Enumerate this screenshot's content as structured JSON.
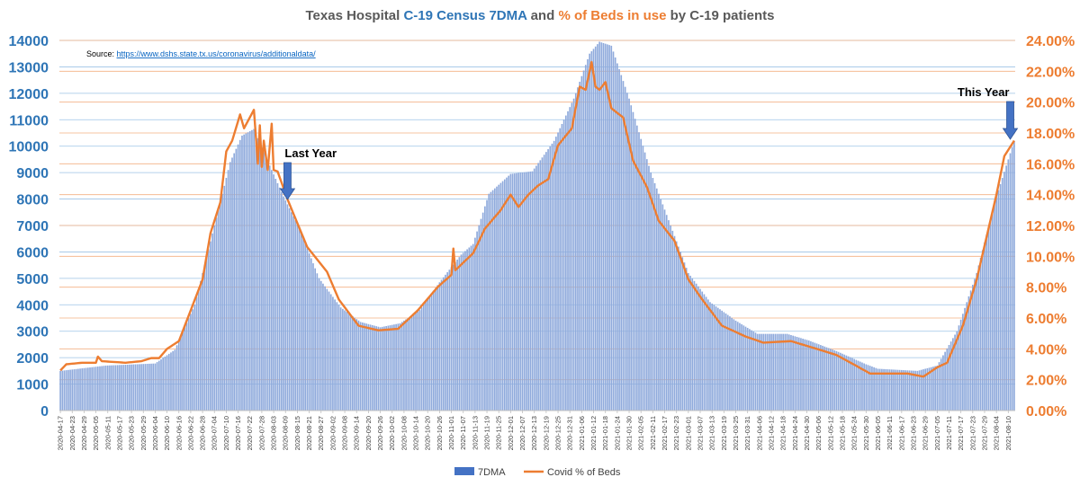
{
  "chart_data": {
    "type": "bar+line",
    "title_parts": [
      {
        "text": "Texas Hospital ",
        "style": "plain"
      },
      {
        "text": "C-19 Census 7DMA",
        "style": "blue"
      },
      {
        "text": " and ",
        "style": "plain"
      },
      {
        "text": "% of Beds in use",
        "style": "orange"
      },
      {
        "text": " by C-19 patients",
        "style": "plain"
      }
    ],
    "source_label": "Source:",
    "source_url": "https://www.dshs.state.tx.us/coronavirus/additionaldata/",
    "x_start": "2020-04-17",
    "x_end": "2021-08-13",
    "x_tick_labels": [
      "2020-04-17",
      "2020-04-23",
      "2020-04-29",
      "2020-05-05",
      "2020-05-11",
      "2020-05-17",
      "2020-05-23",
      "2020-05-29",
      "2020-06-04",
      "2020-06-10",
      "2020-06-16",
      "2020-06-22",
      "2020-06-28",
      "2020-07-04",
      "2020-07-10",
      "2020-07-16",
      "2020-07-22",
      "2020-07-28",
      "2020-08-03",
      "2020-08-09",
      "2020-08-15",
      "2020-08-21",
      "2020-08-27",
      "2020-09-02",
      "2020-09-08",
      "2020-09-14",
      "2020-09-20",
      "2020-09-26",
      "2020-10-02",
      "2020-10-08",
      "2020-10-14",
      "2020-10-20",
      "2020-10-26",
      "2020-11-01",
      "2020-11-07",
      "2020-11-13",
      "2020-11-19",
      "2020-11-25",
      "2020-12-01",
      "2020-12-07",
      "2020-12-13",
      "2020-12-19",
      "2020-12-25",
      "2020-12-31",
      "2021-01-06",
      "2021-01-12",
      "2021-01-18",
      "2021-01-24",
      "2021-01-30",
      "2021-02-05",
      "2021-02-11",
      "2021-02-17",
      "2021-02-23",
      "2021-03-01",
      "2021-03-07",
      "2021-03-13",
      "2021-03-19",
      "2021-03-25",
      "2021-03-31",
      "2021-04-06",
      "2021-04-12",
      "2021-04-18",
      "2021-04-24",
      "2021-04-30",
      "2021-05-06",
      "2021-05-12",
      "2021-05-18",
      "2021-05-24",
      "2021-05-30",
      "2021-06-05",
      "2021-06-11",
      "2021-06-17",
      "2021-06-23",
      "2021-06-29",
      "2021-07-05",
      "2021-07-11",
      "2021-07-17",
      "2021-07-23",
      "2021-07-29",
      "2021-08-04",
      "2021-08-10"
    ],
    "y_left": {
      "min": 0,
      "max": 14000,
      "ticks": [
        "0",
        "1000",
        "2000",
        "3000",
        "4000",
        "5000",
        "6000",
        "7000",
        "8000",
        "9000",
        "10000",
        "11000",
        "12000",
        "13000",
        "14000"
      ]
    },
    "y_right": {
      "min": 0,
      "max": 24,
      "ticks": [
        "0.00%",
        "2.00%",
        "4.00%",
        "6.00%",
        "8.00%",
        "10.00%",
        "12.00%",
        "14.00%",
        "16.00%",
        "18.00%",
        "20.00%",
        "22.00%",
        "24.00%"
      ]
    },
    "series": [
      {
        "name": "7DMA",
        "type": "bar",
        "color": "#4472c4",
        "axis": "left",
        "keypoints": [
          [
            "2020-04-17",
            1500
          ],
          [
            "2020-05-10",
            1700
          ],
          [
            "2020-06-04",
            1780
          ],
          [
            "2020-06-14",
            2300
          ],
          [
            "2020-06-24",
            4000
          ],
          [
            "2020-07-04",
            7000
          ],
          [
            "2020-07-12",
            9400
          ],
          [
            "2020-07-18",
            10400
          ],
          [
            "2020-07-24",
            10650
          ],
          [
            "2020-07-30",
            9600
          ],
          [
            "2020-08-08",
            8100
          ],
          [
            "2020-08-16",
            6900
          ],
          [
            "2020-08-26",
            5000
          ],
          [
            "2020-09-06",
            3900
          ],
          [
            "2020-09-16",
            3350
          ],
          [
            "2020-09-26",
            3150
          ],
          [
            "2020-10-06",
            3300
          ],
          [
            "2020-10-16",
            3800
          ],
          [
            "2020-10-26",
            4850
          ],
          [
            "2020-11-06",
            5900
          ],
          [
            "2020-11-12",
            6300
          ],
          [
            "2020-11-20",
            8200
          ],
          [
            "2020-12-01",
            8950
          ],
          [
            "2020-12-12",
            9050
          ],
          [
            "2020-12-23",
            10200
          ],
          [
            "2021-01-02",
            11800
          ],
          [
            "2021-01-10",
            13500
          ],
          [
            "2021-01-15",
            13950
          ],
          [
            "2021-01-21",
            13800
          ],
          [
            "2021-01-30",
            11800
          ],
          [
            "2021-02-10",
            9000
          ],
          [
            "2021-02-20",
            7000
          ],
          [
            "2021-03-01",
            5200
          ],
          [
            "2021-03-12",
            4100
          ],
          [
            "2021-03-25",
            3400
          ],
          [
            "2021-04-05",
            2900
          ],
          [
            "2021-04-20",
            2900
          ],
          [
            "2021-05-01",
            2650
          ],
          [
            "2021-05-15",
            2250
          ],
          [
            "2021-05-30",
            1750
          ],
          [
            "2021-06-05",
            1580
          ],
          [
            "2021-06-25",
            1500
          ],
          [
            "2021-07-05",
            1700
          ],
          [
            "2021-07-15",
            3000
          ],
          [
            "2021-07-25",
            5200
          ],
          [
            "2021-08-04",
            8100
          ],
          [
            "2021-08-13",
            10200
          ]
        ]
      },
      {
        "name": "Covid % of Beds",
        "type": "line",
        "color": "#ed7d31",
        "axis": "right",
        "keypoints": [
          [
            "2020-04-17",
            2.6
          ],
          [
            "2020-04-20",
            3.0
          ],
          [
            "2020-04-28",
            3.1
          ],
          [
            "2020-05-05",
            3.1
          ],
          [
            "2020-05-06",
            3.5
          ],
          [
            "2020-05-08",
            3.2
          ],
          [
            "2020-05-20",
            3.1
          ],
          [
            "2020-05-28",
            3.2
          ],
          [
            "2020-06-02",
            3.4
          ],
          [
            "2020-06-06",
            3.4
          ],
          [
            "2020-06-10",
            4.0
          ],
          [
            "2020-06-16",
            4.5
          ],
          [
            "2020-06-22",
            6.5
          ],
          [
            "2020-06-28",
            8.5
          ],
          [
            "2020-07-02",
            11.5
          ],
          [
            "2020-07-07",
            13.5
          ],
          [
            "2020-07-10",
            16.8
          ],
          [
            "2020-07-13",
            17.5
          ],
          [
            "2020-07-17",
            19.2
          ],
          [
            "2020-07-19",
            18.3
          ],
          [
            "2020-07-24",
            19.5
          ],
          [
            "2020-07-26",
            16.0
          ],
          [
            "2020-07-27",
            18.5
          ],
          [
            "2020-07-28",
            15.8
          ],
          [
            "2020-07-29",
            17.5
          ],
          [
            "2020-07-31",
            15.6
          ],
          [
            "2020-08-02",
            18.6
          ],
          [
            "2020-08-03",
            15.6
          ],
          [
            "2020-08-05",
            15.5
          ],
          [
            "2020-08-10",
            13.7
          ],
          [
            "2020-08-20",
            10.6
          ],
          [
            "2020-08-30",
            9.0
          ],
          [
            "2020-09-05",
            7.2
          ],
          [
            "2020-09-15",
            5.5
          ],
          [
            "2020-09-25",
            5.2
          ],
          [
            "2020-10-05",
            5.3
          ],
          [
            "2020-10-15",
            6.5
          ],
          [
            "2020-10-25",
            8.0
          ],
          [
            "2020-11-01",
            8.8
          ],
          [
            "2020-11-02",
            10.5
          ],
          [
            "2020-11-03",
            9.1
          ],
          [
            "2020-11-12",
            10.2
          ],
          [
            "2020-11-18",
            11.8
          ],
          [
            "2020-11-26",
            13.0
          ],
          [
            "2020-12-01",
            14.0
          ],
          [
            "2020-12-05",
            13.2
          ],
          [
            "2020-12-10",
            14.0
          ],
          [
            "2020-12-15",
            14.6
          ],
          [
            "2020-12-20",
            15.0
          ],
          [
            "2020-12-25",
            17.2
          ],
          [
            "2021-01-01",
            18.3
          ],
          [
            "2021-01-05",
            21.0
          ],
          [
            "2021-01-08",
            20.8
          ],
          [
            "2021-01-11",
            22.6
          ],
          [
            "2021-01-13",
            21.0
          ],
          [
            "2021-01-15",
            20.8
          ],
          [
            "2021-01-18",
            21.3
          ],
          [
            "2021-01-21",
            19.6
          ],
          [
            "2021-01-27",
            19.0
          ],
          [
            "2021-02-01",
            16.2
          ],
          [
            "2021-02-08",
            14.5
          ],
          [
            "2021-02-14",
            12.3
          ],
          [
            "2021-02-22",
            11.0
          ],
          [
            "2021-03-01",
            8.5
          ],
          [
            "2021-03-08",
            7.2
          ],
          [
            "2021-03-18",
            5.5
          ],
          [
            "2021-03-30",
            4.8
          ],
          [
            "2021-04-08",
            4.4
          ],
          [
            "2021-04-22",
            4.5
          ],
          [
            "2021-05-05",
            4.0
          ],
          [
            "2021-05-15",
            3.6
          ],
          [
            "2021-05-25",
            2.9
          ],
          [
            "2021-06-01",
            2.4
          ],
          [
            "2021-06-20",
            2.4
          ],
          [
            "2021-06-28",
            2.2
          ],
          [
            "2021-07-05",
            2.8
          ],
          [
            "2021-07-10",
            3.1
          ],
          [
            "2021-07-18",
            5.5
          ],
          [
            "2021-07-25",
            8.5
          ],
          [
            "2021-08-04",
            14.0
          ],
          [
            "2021-08-08",
            16.5
          ],
          [
            "2021-08-13",
            17.5
          ]
        ]
      }
    ],
    "annotations": [
      {
        "text": "Last Year",
        "date": "2020-08-10",
        "color": "#4472c4"
      },
      {
        "text": "This Year",
        "date": "2021-08-11",
        "color": "#4472c4"
      }
    ],
    "legend": {
      "position": "bottom",
      "entries": [
        "7DMA",
        "Covid % of Beds"
      ]
    },
    "grid": {
      "horizontal": true,
      "left_color": "#9dc3e6",
      "right_color": "#f4b183"
    }
  }
}
